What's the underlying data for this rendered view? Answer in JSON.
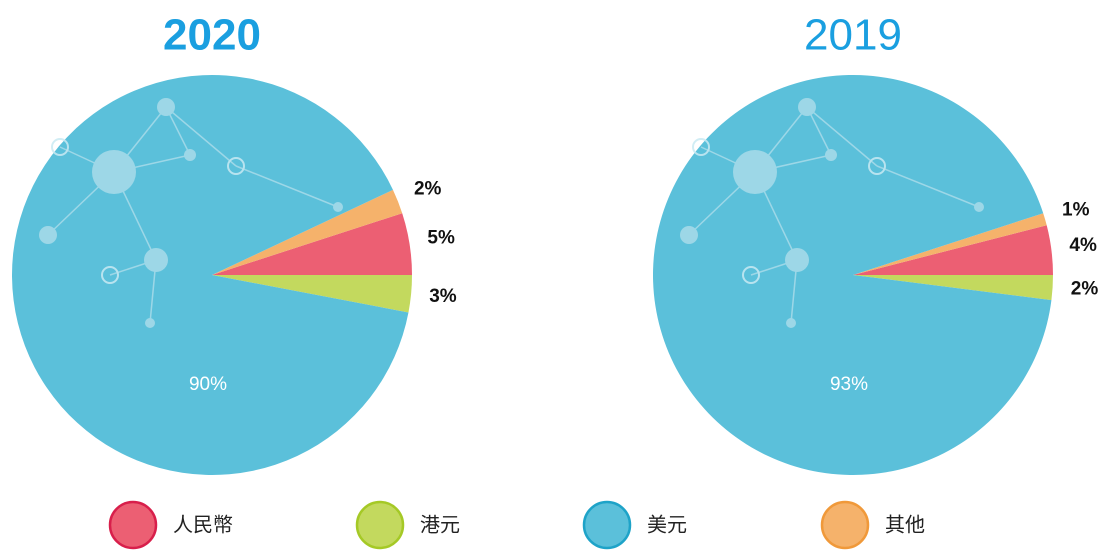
{
  "chart_data": [
    {
      "type": "pie",
      "title": "2020",
      "values": [
        5,
        3,
        90,
        2
      ],
      "value_labels": [
        "5%",
        "3%",
        "90%",
        "2%"
      ]
    },
    {
      "type": "pie",
      "title": "2019",
      "values": [
        4,
        2,
        93,
        1
      ],
      "value_labels": [
        "4%",
        "2%",
        "93%",
        "1%"
      ]
    }
  ],
  "legend": [
    {
      "name": "人民幣",
      "color": "#ec5f73",
      "border": "#d81f4b"
    },
    {
      "name": "港元",
      "color": "#c3d95e",
      "border": "#a5c926"
    },
    {
      "name": "美元",
      "color": "#5bc0da",
      "border": "#1ea3c8"
    },
    {
      "name": "其他",
      "color": "#f5b26b",
      "border": "#f0993a"
    }
  ]
}
